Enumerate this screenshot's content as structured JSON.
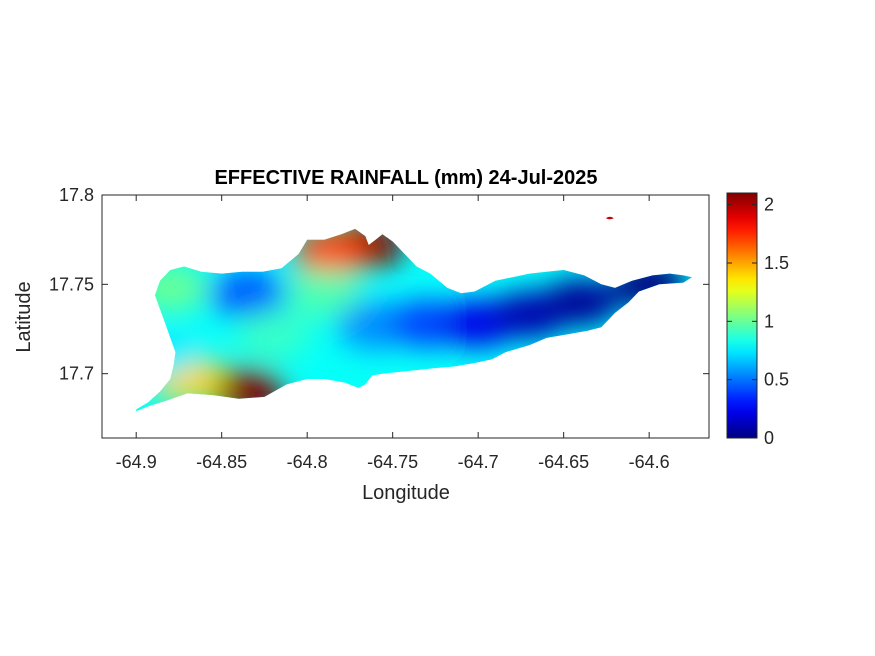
{
  "chart_data": {
    "type": "heatmap",
    "title": "EFFECTIVE RAINFALL (mm) 24-Jul-2025",
    "xlabel": "Longitude",
    "ylabel": "Latitude",
    "xlim": [
      -64.92,
      -64.565
    ],
    "ylim": [
      17.664,
      17.8
    ],
    "xticks": [
      -64.9,
      -64.85,
      -64.8,
      -64.75,
      -64.7,
      -64.65,
      -64.6
    ],
    "xtick_labels": [
      "-64.9",
      "-64.85",
      "-64.8",
      "-64.75",
      "-64.7",
      "-64.65",
      "-64.6"
    ],
    "yticks": [
      17.7,
      17.75,
      17.8
    ],
    "ytick_labels": [
      "17.7",
      "17.75",
      "17.8"
    ],
    "colorbar": {
      "colormap": "jet",
      "range": [
        0,
        2.1
      ],
      "ticks": [
        0,
        0.5,
        1,
        1.5,
        2
      ],
      "tick_labels": [
        "0",
        "0.5",
        "1",
        "1.5",
        "2"
      ]
    },
    "island_outline_lonlat": [
      [
        -64.9,
        17.68
      ],
      [
        -64.893,
        17.684
      ],
      [
        -64.886,
        17.69
      ],
      [
        -64.88,
        17.697
      ],
      [
        -64.878,
        17.705
      ],
      [
        -64.877,
        17.712
      ],
      [
        -64.88,
        17.72
      ],
      [
        -64.883,
        17.728
      ],
      [
        -64.886,
        17.736
      ],
      [
        -64.889,
        17.744
      ],
      [
        -64.886,
        17.752
      ],
      [
        -64.88,
        17.758
      ],
      [
        -64.872,
        17.76
      ],
      [
        -64.862,
        17.757
      ],
      [
        -64.85,
        17.756
      ],
      [
        -64.838,
        17.757
      ],
      [
        -64.826,
        17.757
      ],
      [
        -64.815,
        17.759
      ],
      [
        -64.805,
        17.767
      ],
      [
        -64.8,
        17.775
      ],
      [
        -64.79,
        17.775
      ],
      [
        -64.78,
        17.778
      ],
      [
        -64.772,
        17.781
      ],
      [
        -64.766,
        17.777
      ],
      [
        -64.764,
        17.772
      ],
      [
        -64.76,
        17.775
      ],
      [
        -64.756,
        17.778
      ],
      [
        -64.75,
        17.774
      ],
      [
        -64.742,
        17.766
      ],
      [
        -64.736,
        17.76
      ],
      [
        -64.728,
        17.756
      ],
      [
        -64.718,
        17.748
      ],
      [
        -64.71,
        17.745
      ],
      [
        -64.702,
        17.746
      ],
      [
        -64.69,
        17.752
      ],
      [
        -64.68,
        17.754
      ],
      [
        -64.67,
        17.756
      ],
      [
        -64.66,
        17.757
      ],
      [
        -64.65,
        17.758
      ],
      [
        -64.638,
        17.755
      ],
      [
        -64.628,
        17.75
      ],
      [
        -64.62,
        17.748
      ],
      [
        -64.61,
        17.752
      ],
      [
        -64.598,
        17.755
      ],
      [
        -64.588,
        17.756
      ],
      [
        -64.58,
        17.755
      ],
      [
        -64.575,
        17.754
      ],
      [
        -64.58,
        17.751
      ],
      [
        -64.594,
        17.75
      ],
      [
        -64.606,
        17.746
      ],
      [
        -64.612,
        17.74
      ],
      [
        -64.62,
        17.734
      ],
      [
        -64.628,
        17.726
      ],
      [
        -64.636,
        17.724
      ],
      [
        -64.648,
        17.722
      ],
      [
        -64.66,
        17.72
      ],
      [
        -64.67,
        17.716
      ],
      [
        -64.684,
        17.712
      ],
      [
        -64.692,
        17.708
      ],
      [
        -64.702,
        17.706
      ],
      [
        -64.714,
        17.704
      ],
      [
        -64.726,
        17.703
      ],
      [
        -64.736,
        17.702
      ],
      [
        -64.746,
        17.701
      ],
      [
        -64.756,
        17.7
      ],
      [
        -64.762,
        17.699
      ],
      [
        -64.766,
        17.694
      ],
      [
        -64.77,
        17.692
      ],
      [
        -64.778,
        17.695
      ],
      [
        -64.79,
        17.697
      ],
      [
        -64.8,
        17.697
      ],
      [
        -64.812,
        17.694
      ],
      [
        -64.825,
        17.687
      ],
      [
        -64.84,
        17.686
      ],
      [
        -64.855,
        17.688
      ],
      [
        -64.87,
        17.689
      ],
      [
        -64.882,
        17.685
      ],
      [
        -64.892,
        17.682
      ],
      [
        -64.9,
        17.679
      ]
    ],
    "islet_lonlat": [
      -64.623,
      17.787
    ],
    "rainfall_hotspots": [
      {
        "lon": -64.765,
        "lat": 17.772,
        "value": 2.1
      },
      {
        "lon": -64.835,
        "lat": 17.69,
        "value": 2.1
      },
      {
        "lon": -64.87,
        "lat": 17.697,
        "value": 1.4
      },
      {
        "lon": -64.786,
        "lat": 17.768,
        "value": 1.7
      },
      {
        "lon": -64.88,
        "lat": 17.748,
        "value": 1.0
      },
      {
        "lon": -64.835,
        "lat": 17.745,
        "value": 0.45
      },
      {
        "lon": -64.82,
        "lat": 17.722,
        "value": 0.9
      },
      {
        "lon": -64.79,
        "lat": 17.745,
        "value": 0.95
      },
      {
        "lon": -64.76,
        "lat": 17.727,
        "value": 0.55
      },
      {
        "lon": -64.73,
        "lat": 17.728,
        "value": 0.4
      },
      {
        "lon": -64.7,
        "lat": 17.728,
        "value": 0.22
      },
      {
        "lon": -64.67,
        "lat": 17.733,
        "value": 0.1
      },
      {
        "lon": -64.64,
        "lat": 17.74,
        "value": 0.05
      },
      {
        "lon": -64.6,
        "lat": 17.75,
        "value": 0.0
      },
      {
        "lon": -64.885,
        "lat": 17.712,
        "value": 0.75
      }
    ]
  }
}
